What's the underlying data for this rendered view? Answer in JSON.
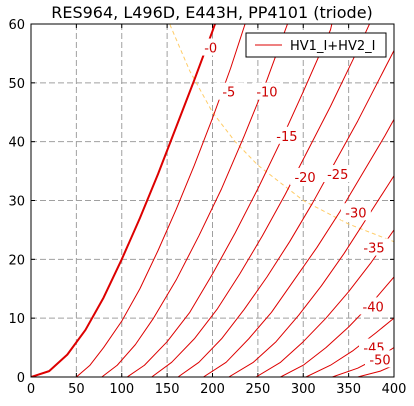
{
  "chart_data": {
    "type": "line",
    "title": "RES964, L496D, E443H, PP4101 (triode)",
    "xlabel": "",
    "ylabel": "",
    "xlim": [
      0,
      400
    ],
    "ylim": [
      0,
      60
    ],
    "x_ticks": [
      0,
      50,
      100,
      150,
      200,
      250,
      300,
      350,
      400
    ],
    "y_ticks": [
      0,
      10,
      20,
      30,
      40,
      50,
      60
    ],
    "grid": true,
    "legend": {
      "position": "top-right",
      "entries": [
        "HV1_I+HV2_I"
      ]
    },
    "series_color": "#dd0000",
    "load_line_color": "#ffcc66",
    "series": [
      {
        "label": "-0",
        "label_at": [
          198,
          56
        ],
        "highlight": true,
        "points": [
          [
            0,
            0
          ],
          [
            20,
            1
          ],
          [
            40,
            3.8
          ],
          [
            60,
            8
          ],
          [
            80,
            13.5
          ],
          [
            100,
            20
          ],
          [
            120,
            27
          ],
          [
            140,
            34.5
          ],
          [
            160,
            42.5
          ],
          [
            180,
            50.5
          ],
          [
            200,
            58.8
          ],
          [
            205,
            61
          ]
        ]
      },
      {
        "label": "-5",
        "label_at": [
          218,
          48.5
        ],
        "points": [
          [
            50,
            0
          ],
          [
            65,
            2
          ],
          [
            80,
            5
          ],
          [
            100,
            9.5
          ],
          [
            120,
            15
          ],
          [
            140,
            21.5
          ],
          [
            160,
            28.5
          ],
          [
            180,
            36
          ],
          [
            200,
            44
          ],
          [
            220,
            52.5
          ],
          [
            238,
            61
          ]
        ]
      },
      {
        "label": "-10",
        "label_at": [
          260,
          48.5
        ],
        "points": [
          [
            78,
            0
          ],
          [
            95,
            2
          ],
          [
            115,
            5.5
          ],
          [
            135,
            10
          ],
          [
            160,
            16.5
          ],
          [
            185,
            24
          ],
          [
            210,
            32
          ],
          [
            235,
            41
          ],
          [
            260,
            50.5
          ],
          [
            285,
            61
          ]
        ]
      },
      {
        "label": "-15",
        "label_at": [
          282,
          41
        ],
        "points": [
          [
            106,
            0
          ],
          [
            125,
            2
          ],
          [
            150,
            6
          ],
          [
            175,
            11
          ],
          [
            200,
            17.5
          ],
          [
            225,
            24.5
          ],
          [
            250,
            32
          ],
          [
            275,
            40
          ],
          [
            300,
            48.5
          ],
          [
            330,
            59
          ],
          [
            333,
            61
          ]
        ]
      },
      {
        "label": "-20",
        "label_at": [
          302,
          34
        ],
        "points": [
          [
            133,
            0
          ],
          [
            155,
            2.5
          ],
          [
            180,
            6.5
          ],
          [
            205,
            11.5
          ],
          [
            230,
            17.5
          ],
          [
            255,
            24
          ],
          [
            280,
            31
          ],
          [
            305,
            38.5
          ],
          [
            330,
            46
          ],
          [
            355,
            54
          ],
          [
            376,
            61
          ]
        ]
      },
      {
        "label": "-25",
        "label_at": [
          338,
          34.5
        ],
        "points": [
          [
            162,
            0
          ],
          [
            185,
            2.5
          ],
          [
            210,
            6.5
          ],
          [
            235,
            11.5
          ],
          [
            260,
            17
          ],
          [
            285,
            23
          ],
          [
            310,
            29.5
          ],
          [
            335,
            36.5
          ],
          [
            360,
            43.5
          ],
          [
            385,
            51
          ],
          [
            400,
            55.5
          ]
        ]
      },
      {
        "label": "-30",
        "label_at": [
          358,
          28
        ],
        "points": [
          [
            190,
            0
          ],
          [
            215,
            2.5
          ],
          [
            240,
            6.5
          ],
          [
            265,
            11
          ],
          [
            290,
            16.5
          ],
          [
            315,
            22
          ],
          [
            340,
            28
          ],
          [
            365,
            34.5
          ],
          [
            390,
            41
          ],
          [
            400,
            43.8
          ]
        ]
      },
      {
        "label": "-35",
        "label_at": [
          378,
          22
        ],
        "points": [
          [
            218,
            0
          ],
          [
            245,
            2.5
          ],
          [
            270,
            6
          ],
          [
            295,
            10.5
          ],
          [
            320,
            15.5
          ],
          [
            345,
            21
          ],
          [
            370,
            27
          ],
          [
            395,
            33
          ],
          [
            400,
            34.2
          ]
        ]
      },
      {
        "label": "-40",
        "label_at": [
          377,
          12
        ],
        "points": [
          [
            248,
            0
          ],
          [
            275,
            2.5
          ],
          [
            300,
            6
          ],
          [
            325,
            10
          ],
          [
            350,
            14.5
          ],
          [
            375,
            19.5
          ],
          [
            400,
            25
          ]
        ]
      },
      {
        "label": "-45",
        "label_at": [
          378,
          5
        ],
        "points": [
          [
            275,
            0
          ],
          [
            300,
            2
          ],
          [
            325,
            5
          ],
          [
            350,
            8.5
          ],
          [
            375,
            12.5
          ],
          [
            400,
            17
          ]
        ]
      },
      {
        "label": "-50",
        "label_at": [
          400,
          3
        ],
        "points": [
          [
            303,
            0
          ],
          [
            330,
            2
          ],
          [
            355,
            4.5
          ],
          [
            380,
            7.5
          ],
          [
            400,
            10
          ]
        ]
      },
      {
        "label": "",
        "points": [
          [
            332,
            0
          ],
          [
            360,
            1.5
          ],
          [
            385,
            3.5
          ],
          [
            400,
            5
          ]
        ]
      },
      {
        "label": "",
        "points": [
          [
            360,
            0
          ],
          [
            385,
            1
          ],
          [
            400,
            2
          ]
        ]
      }
    ],
    "load_line": [
      [
        150,
        61
      ],
      [
        175,
        52
      ],
      [
        200,
        45
      ],
      [
        225,
        40
      ],
      [
        250,
        36
      ],
      [
        275,
        33
      ],
      [
        300,
        30
      ],
      [
        325,
        28
      ],
      [
        350,
        26
      ],
      [
        375,
        24.5
      ],
      [
        400,
        23
      ]
    ]
  }
}
